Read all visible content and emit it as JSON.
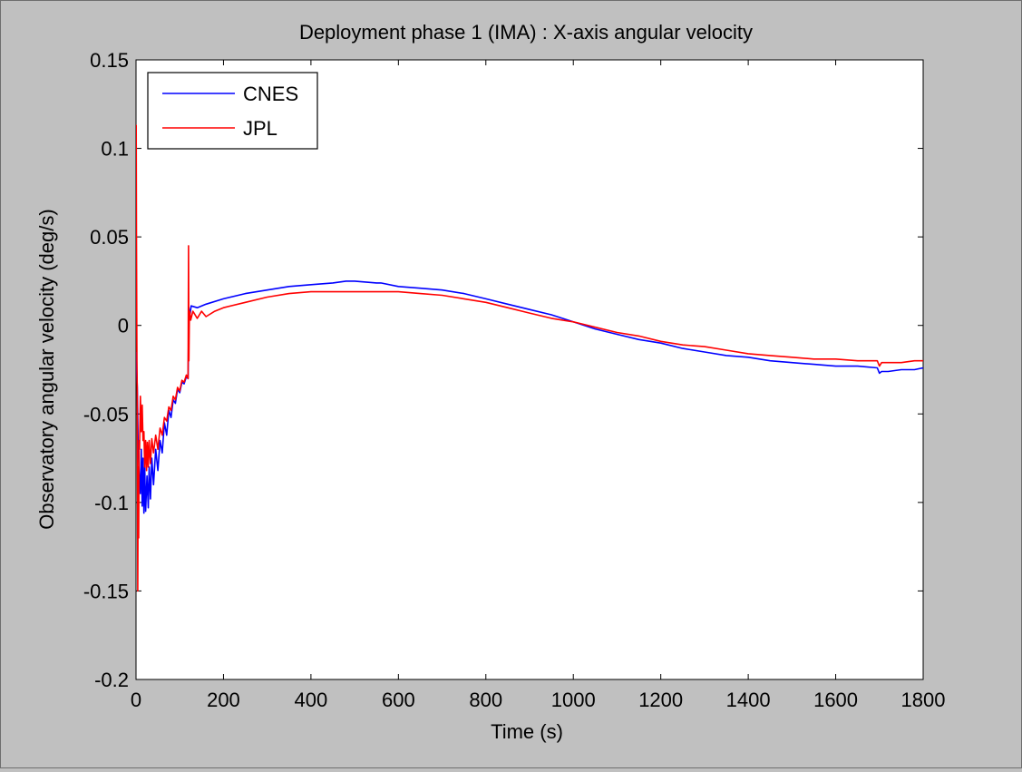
{
  "chart_data": {
    "type": "line",
    "title": "Deployment phase 1 (IMA) : X-axis angular velocity",
    "xlabel": "Time (s)",
    "ylabel": "Observatory angular velocity (deg/s)",
    "xlim": [
      0,
      1800
    ],
    "ylim": [
      -0.2,
      0.15
    ],
    "xticks": [
      0,
      200,
      400,
      600,
      800,
      1000,
      1200,
      1400,
      1600,
      1800
    ],
    "xtick_labels": [
      "0",
      "200",
      "400",
      "600",
      "800",
      "1000",
      "1200",
      "1400",
      "1600",
      "1800"
    ],
    "yticks": [
      -0.2,
      -0.15,
      -0.1,
      -0.05,
      0,
      0.05,
      0.1,
      0.15
    ],
    "ytick_labels": [
      "-0.2",
      "-0.15",
      "-0.1",
      "-0.05",
      "0",
      "0.05",
      "0.1",
      "0.15"
    ],
    "grid": false,
    "legend_position": "top-left",
    "series": [
      {
        "name": "CNES",
        "color": "#0000ff",
        "x": [
          0,
          3,
          5,
          8,
          10,
          12,
          14,
          16,
          18,
          20,
          22,
          25,
          28,
          30,
          33,
          36,
          40,
          45,
          50,
          55,
          60,
          65,
          70,
          75,
          80,
          85,
          90,
          95,
          100,
          105,
          110,
          115,
          119,
          121,
          123,
          126,
          140,
          160,
          200,
          250,
          300,
          350,
          400,
          450,
          480,
          500,
          550,
          560,
          600,
          650,
          700,
          750,
          800,
          850,
          900,
          950,
          1000,
          1050,
          1100,
          1150,
          1200,
          1250,
          1300,
          1350,
          1400,
          1450,
          1500,
          1550,
          1600,
          1650,
          1695,
          1700,
          1705,
          1720,
          1750,
          1780,
          1800
        ],
        "y": [
          -0.015,
          -0.035,
          -0.07,
          -0.088,
          -0.095,
          -0.07,
          -0.102,
          -0.075,
          -0.106,
          -0.08,
          -0.105,
          -0.085,
          -0.103,
          -0.08,
          -0.098,
          -0.075,
          -0.09,
          -0.07,
          -0.082,
          -0.065,
          -0.072,
          -0.055,
          -0.062,
          -0.048,
          -0.052,
          -0.042,
          -0.044,
          -0.036,
          -0.038,
          -0.032,
          -0.033,
          -0.029,
          -0.03,
          0.01,
          0.005,
          0.011,
          0.01,
          0.012,
          0.015,
          0.018,
          0.02,
          0.022,
          0.023,
          0.024,
          0.025,
          0.025,
          0.024,
          0.024,
          0.022,
          0.021,
          0.02,
          0.018,
          0.015,
          0.012,
          0.009,
          0.006,
          0.002,
          -0.002,
          -0.005,
          -0.008,
          -0.01,
          -0.013,
          -0.015,
          -0.017,
          -0.018,
          -0.02,
          -0.021,
          -0.022,
          -0.023,
          -0.023,
          -0.024,
          -0.027,
          -0.026,
          -0.026,
          -0.025,
          -0.025,
          -0.024
        ]
      },
      {
        "name": "JPL",
        "color": "#ff0000",
        "x": [
          0,
          0.5,
          1,
          2,
          3,
          4,
          5,
          6,
          7,
          8,
          10,
          12,
          14,
          16,
          18,
          20,
          22,
          24,
          26,
          28,
          30,
          33,
          36,
          40,
          45,
          50,
          55,
          60,
          65,
          70,
          75,
          80,
          85,
          90,
          95,
          100,
          105,
          110,
          115,
          119,
          120,
          121,
          122,
          123,
          125,
          130,
          140,
          150,
          160,
          180,
          200,
          250,
          300,
          350,
          400,
          450,
          500,
          550,
          600,
          650,
          700,
          750,
          800,
          850,
          900,
          950,
          1000,
          1050,
          1100,
          1150,
          1200,
          1250,
          1300,
          1350,
          1400,
          1450,
          1500,
          1550,
          1600,
          1650,
          1695,
          1700,
          1705,
          1750,
          1780,
          1800
        ],
        "y": [
          0.04,
          0.113,
          0.05,
          -0.02,
          -0.04,
          -0.15,
          -0.08,
          -0.12,
          -0.065,
          -0.07,
          -0.04,
          -0.06,
          -0.045,
          -0.065,
          -0.06,
          -0.08,
          -0.065,
          -0.082,
          -0.066,
          -0.08,
          -0.065,
          -0.078,
          -0.064,
          -0.072,
          -0.062,
          -0.07,
          -0.058,
          -0.062,
          -0.052,
          -0.054,
          -0.046,
          -0.048,
          -0.04,
          -0.042,
          -0.035,
          -0.037,
          -0.031,
          -0.032,
          -0.028,
          -0.03,
          0.045,
          -0.02,
          0.005,
          0.008,
          0.003,
          0.008,
          0.004,
          0.008,
          0.005,
          0.008,
          0.01,
          0.013,
          0.016,
          0.018,
          0.019,
          0.019,
          0.019,
          0.019,
          0.019,
          0.018,
          0.017,
          0.015,
          0.013,
          0.01,
          0.007,
          0.004,
          0.002,
          -0.001,
          -0.004,
          -0.006,
          -0.009,
          -0.011,
          -0.012,
          -0.014,
          -0.016,
          -0.017,
          -0.018,
          -0.019,
          -0.019,
          -0.02,
          -0.02,
          -0.023,
          -0.021,
          -0.021,
          -0.02,
          -0.02
        ]
      }
    ]
  }
}
